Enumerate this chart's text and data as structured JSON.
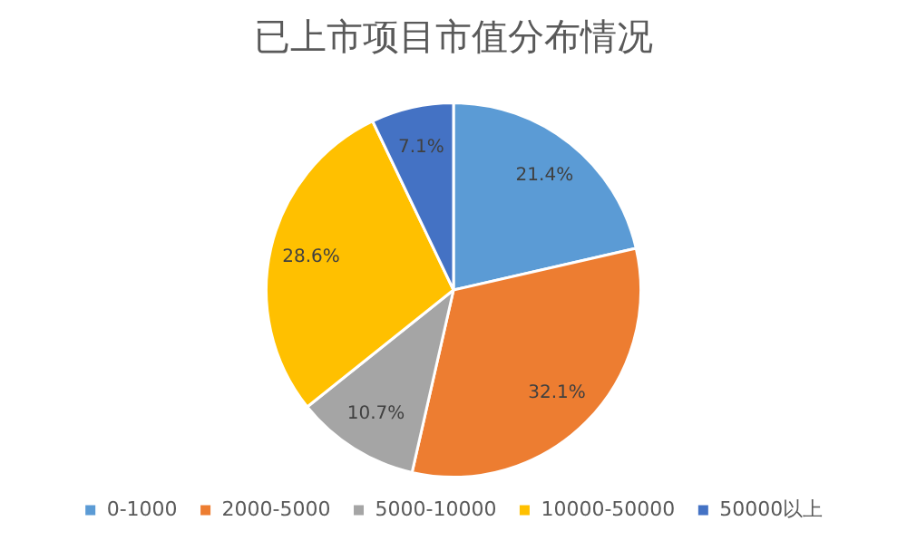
{
  "chart_data": {
    "type": "pie",
    "title": "已上市项目市值分布情况",
    "categories": [
      "0-1000",
      "2000-5000",
      "5000-10000",
      "10000-50000",
      "50000以上"
    ],
    "values": [
      21.4,
      32.1,
      10.7,
      28.6,
      7.1
    ],
    "colors": [
      "#5b9bd5",
      "#ed7d31",
      "#a5a5a5",
      "#ffc000",
      "#4472c4"
    ],
    "value_labels": [
      "21.4%",
      "32.1%",
      "10.7%",
      "28.6%",
      "7.1%"
    ],
    "legend": "bottom"
  }
}
